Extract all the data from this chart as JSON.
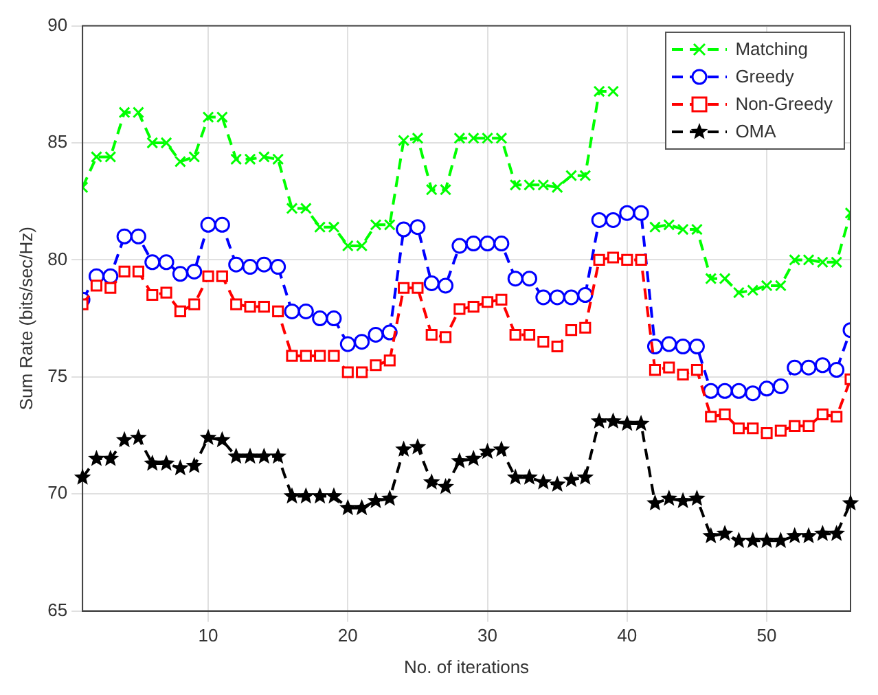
{
  "chart_data": {
    "type": "line",
    "xlabel": "No. of iterations",
    "ylabel": "Sum Rate (bits/sec/Hz)",
    "x": [
      1,
      2,
      3,
      4,
      5,
      6,
      7,
      8,
      9,
      10,
      11,
      12,
      13,
      14,
      15,
      16,
      17,
      18,
      19,
      20,
      21,
      22,
      23,
      24,
      25,
      26,
      27,
      28,
      29,
      30,
      31,
      32,
      33,
      34,
      35,
      36,
      37,
      38,
      39,
      40,
      41,
      42,
      43,
      44,
      45,
      46,
      47,
      48,
      49,
      50,
      51,
      52,
      53,
      54,
      55,
      56
    ],
    "series": [
      {
        "name": "Matching",
        "color": "#00ff00",
        "marker": "cross",
        "values": [
          83.1,
          84.4,
          84.4,
          86.3,
          86.3,
          85.0,
          85.0,
          84.2,
          84.4,
          86.1,
          86.1,
          84.3,
          84.3,
          84.4,
          84.3,
          82.2,
          82.2,
          81.4,
          81.4,
          80.6,
          80.6,
          81.5,
          81.5,
          85.1,
          85.2,
          83.0,
          83.0,
          85.2,
          85.2,
          85.2,
          85.2,
          83.2,
          83.2,
          83.2,
          83.1,
          83.6,
          83.6,
          87.2,
          87.2,
          null,
          null,
          81.4,
          81.5,
          81.3,
          81.3,
          79.2,
          79.2,
          78.6,
          78.7,
          78.9,
          78.9,
          80.0,
          80.0,
          79.9,
          79.9,
          82.0
        ]
      },
      {
        "name": "Greedy",
        "color": "#0000ff",
        "marker": "circle",
        "values": [
          78.3,
          79.3,
          79.3,
          81.0,
          81.0,
          79.9,
          79.9,
          79.4,
          79.5,
          81.5,
          81.5,
          79.8,
          79.7,
          79.8,
          79.7,
          77.8,
          77.8,
          77.5,
          77.5,
          76.4,
          76.5,
          76.8,
          76.9,
          81.3,
          81.4,
          79.0,
          78.9,
          80.6,
          80.7,
          80.7,
          80.7,
          79.2,
          79.2,
          78.4,
          78.4,
          78.4,
          78.5,
          81.7,
          81.7,
          82.0,
          82.0,
          76.3,
          76.4,
          76.3,
          76.3,
          74.4,
          74.4,
          74.4,
          74.3,
          74.5,
          74.6,
          75.4,
          75.4,
          75.5,
          75.3,
          77.0
        ]
      },
      {
        "name": "Non-Greedy",
        "color": "#ff0000",
        "marker": "square",
        "values": [
          78.1,
          78.9,
          78.8,
          79.5,
          79.5,
          78.5,
          78.6,
          77.8,
          78.1,
          79.3,
          79.3,
          78.1,
          78.0,
          78.0,
          77.8,
          75.9,
          75.9,
          75.9,
          75.9,
          75.2,
          75.2,
          75.5,
          75.7,
          78.8,
          78.8,
          76.8,
          76.7,
          77.9,
          78.0,
          78.2,
          78.3,
          76.8,
          76.8,
          76.5,
          76.3,
          77.0,
          77.1,
          80.0,
          80.1,
          80.0,
          80.0,
          75.3,
          75.4,
          75.1,
          75.3,
          73.3,
          73.4,
          72.8,
          72.8,
          72.6,
          72.7,
          72.9,
          72.9,
          73.4,
          73.3,
          74.9
        ]
      },
      {
        "name": "OMA",
        "color": "#000000",
        "marker": "star",
        "values": [
          70.7,
          71.5,
          71.5,
          72.3,
          72.4,
          71.3,
          71.3,
          71.1,
          71.2,
          72.4,
          72.3,
          71.6,
          71.6,
          71.6,
          71.6,
          69.9,
          69.9,
          69.9,
          69.9,
          69.4,
          69.4,
          69.7,
          69.8,
          71.9,
          72.0,
          70.5,
          70.3,
          71.4,
          71.5,
          71.8,
          71.9,
          70.7,
          70.7,
          70.5,
          70.4,
          70.6,
          70.7,
          73.1,
          73.1,
          73.0,
          73.0,
          69.6,
          69.8,
          69.7,
          69.8,
          68.2,
          68.3,
          68.0,
          68.0,
          68.0,
          68.0,
          68.2,
          68.2,
          68.3,
          68.3,
          69.6
        ]
      }
    ],
    "xlim": [
      1,
      56
    ],
    "xticks": [
      10,
      20,
      30,
      40,
      50
    ],
    "ylim": [
      65,
      90
    ],
    "yticks": [
      65,
      70,
      75,
      80,
      85,
      90
    ],
    "grid": true,
    "legend": "top right",
    "line_style": "dashed"
  }
}
